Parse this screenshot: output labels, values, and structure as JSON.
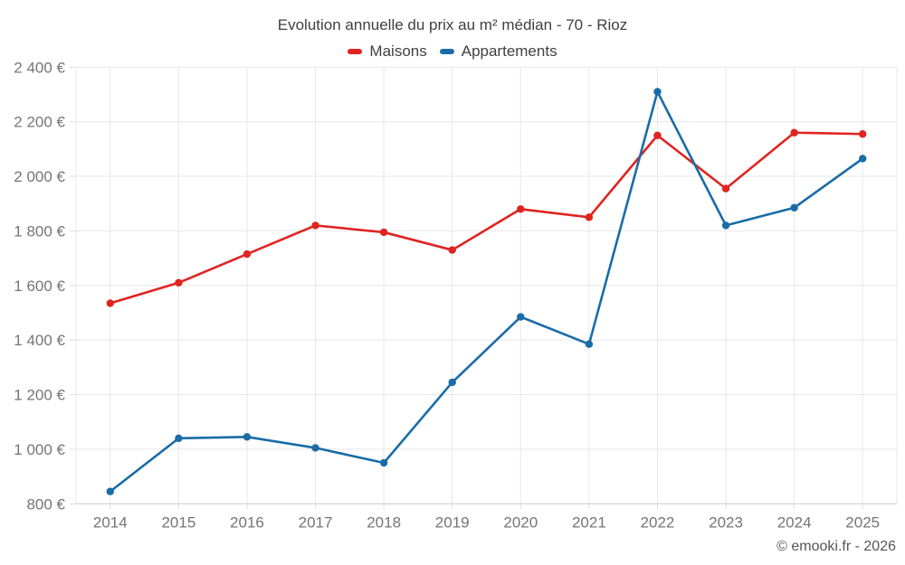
{
  "chart_data": {
    "type": "line",
    "title": "Evolution annuelle du prix au m² médian - 70 - Rioz",
    "attribution": "© emooki.fr - 2026",
    "categories": [
      "2014",
      "2015",
      "2016",
      "2017",
      "2018",
      "2019",
      "2020",
      "2021",
      "2022",
      "2023",
      "2024",
      "2025"
    ],
    "series": [
      {
        "name": "Maisons",
        "color": "#e02420",
        "values": [
          1535,
          1610,
          1715,
          1820,
          1795,
          1730,
          1880,
          1850,
          2150,
          1955,
          2160,
          2155
        ]
      },
      {
        "name": "Appartements",
        "color": "#1a6ca6",
        "values": [
          845,
          1040,
          1045,
          1005,
          950,
          1245,
          1485,
          1385,
          2310,
          1820,
          1885,
          2065
        ]
      }
    ],
    "ylim": [
      800,
      2400
    ],
    "ytick_step": 200,
    "ytick_labels": [
      "800 €",
      "1 000 €",
      "1 200 €",
      "1 400 €",
      "1 600 €",
      "1 800 €",
      "2 000 €",
      "2 200 €",
      "2 400 €"
    ],
    "xlabel": "",
    "ylabel": "",
    "grid": true,
    "legend_position": "top",
    "unit": "€/m²"
  }
}
